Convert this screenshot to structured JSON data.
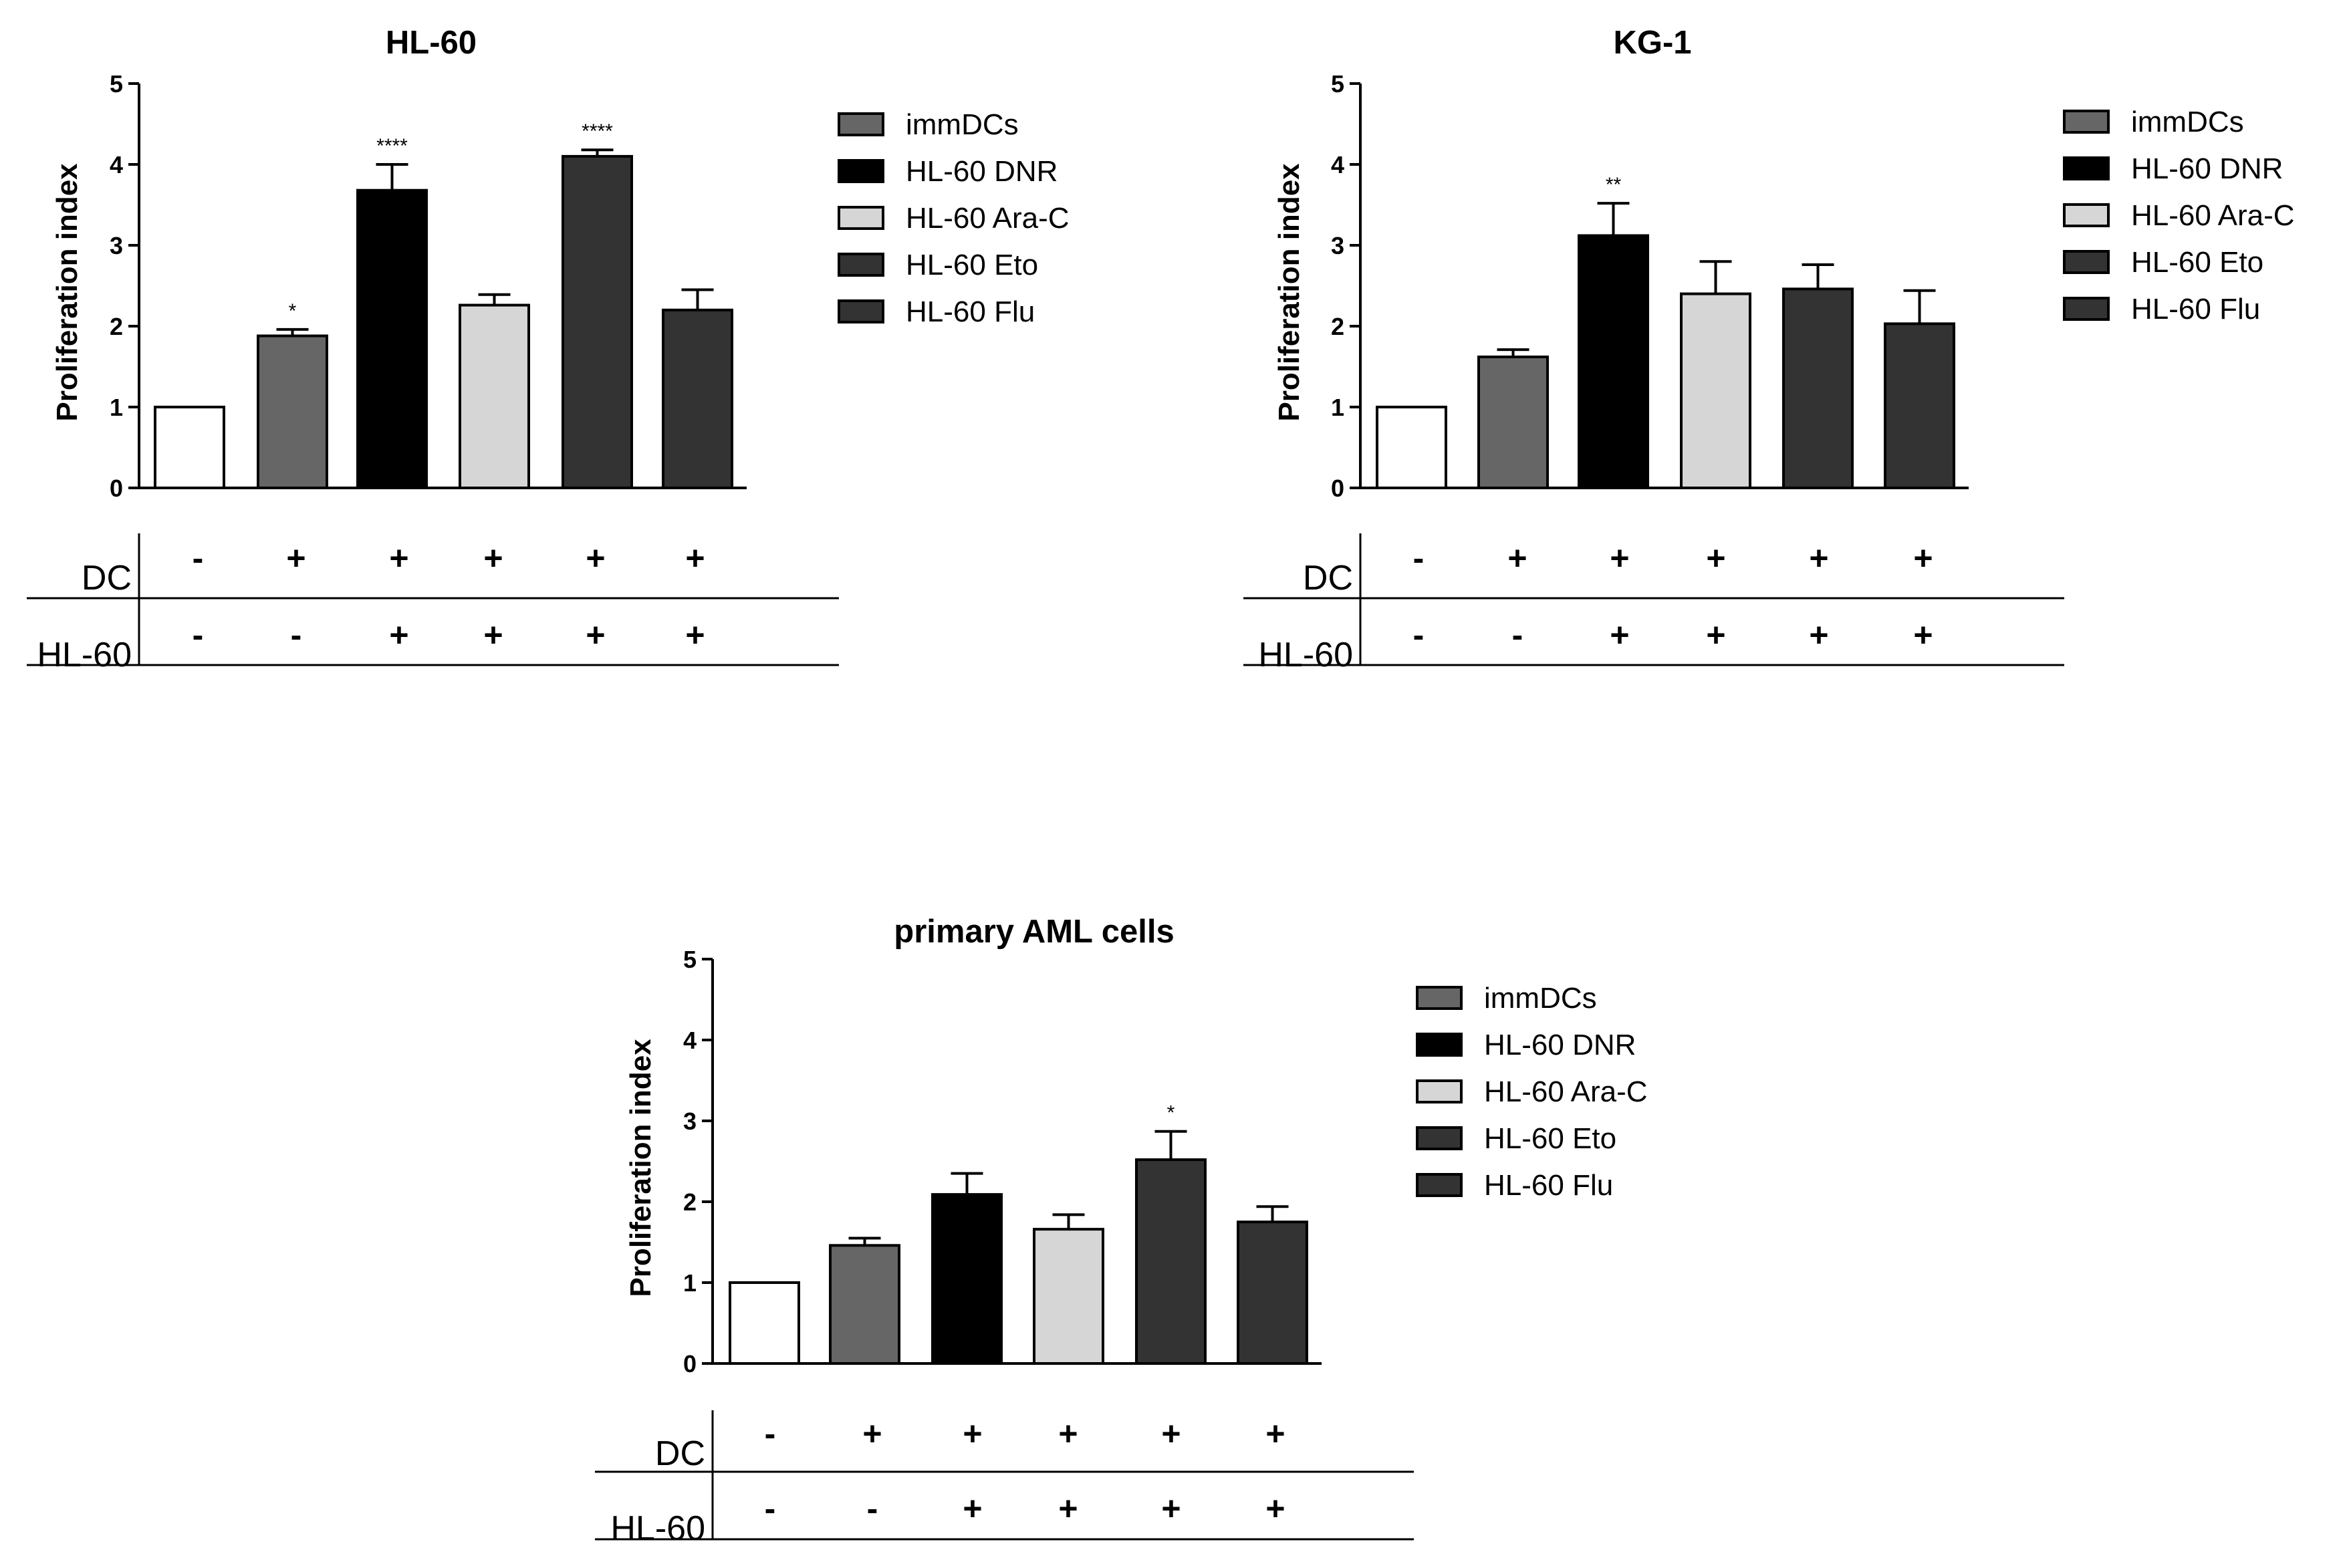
{
  "legend_entries": [
    "immDCs",
    "HL-60 DNR",
    "HL-60 Ara-C",
    "HL-60 Eto",
    "HL-60 Flu"
  ],
  "legend_colors": [
    "#666666",
    "#000000",
    "#d6d6d6",
    "#333333",
    "#333333"
  ],
  "control_color": "#ffffff",
  "table": {
    "row1_label": "DC",
    "row1_signs": [
      "-",
      "+",
      "+",
      "+",
      "+",
      "+"
    ],
    "row2_label": "HL-60",
    "row2_signs": [
      "-",
      "-",
      "+",
      "+",
      "+",
      "+"
    ]
  },
  "chart_data": [
    {
      "type": "bar",
      "title": "HL-60",
      "ylabel": "Proliferation index",
      "ylim": [
        0,
        5
      ],
      "yticks": [
        "0",
        "1",
        "2",
        "3",
        "4",
        "5"
      ],
      "values": [
        1.0,
        1.88,
        3.68,
        2.26,
        4.1,
        2.2
      ],
      "errors": [
        0,
        0.08,
        0.32,
        0.13,
        0.08,
        0.25
      ],
      "annotations": [
        "",
        "*",
        "****",
        "",
        "****",
        ""
      ]
    },
    {
      "type": "bar",
      "title": "KG-1",
      "ylabel": "Proliferation index",
      "ylim": [
        0,
        5
      ],
      "yticks": [
        "0",
        "1",
        "2",
        "3",
        "4",
        "5"
      ],
      "values": [
        1.0,
        1.62,
        3.12,
        2.4,
        2.46,
        2.03
      ],
      "errors": [
        0,
        0.09,
        0.4,
        0.4,
        0.3,
        0.41
      ],
      "annotations": [
        "",
        "",
        "**",
        "",
        "",
        ""
      ]
    },
    {
      "type": "bar",
      "title": "primary AML cells",
      "ylabel": "Proliferation index",
      "ylim": [
        0,
        5
      ],
      "yticks": [
        "0",
        "1",
        "2",
        "3",
        "4",
        "5"
      ],
      "values": [
        1.0,
        1.46,
        2.09,
        1.66,
        2.52,
        1.75
      ],
      "errors": [
        0,
        0.09,
        0.26,
        0.18,
        0.35,
        0.19
      ],
      "annotations": [
        "",
        "",
        "",
        "",
        "*",
        ""
      ]
    }
  ]
}
